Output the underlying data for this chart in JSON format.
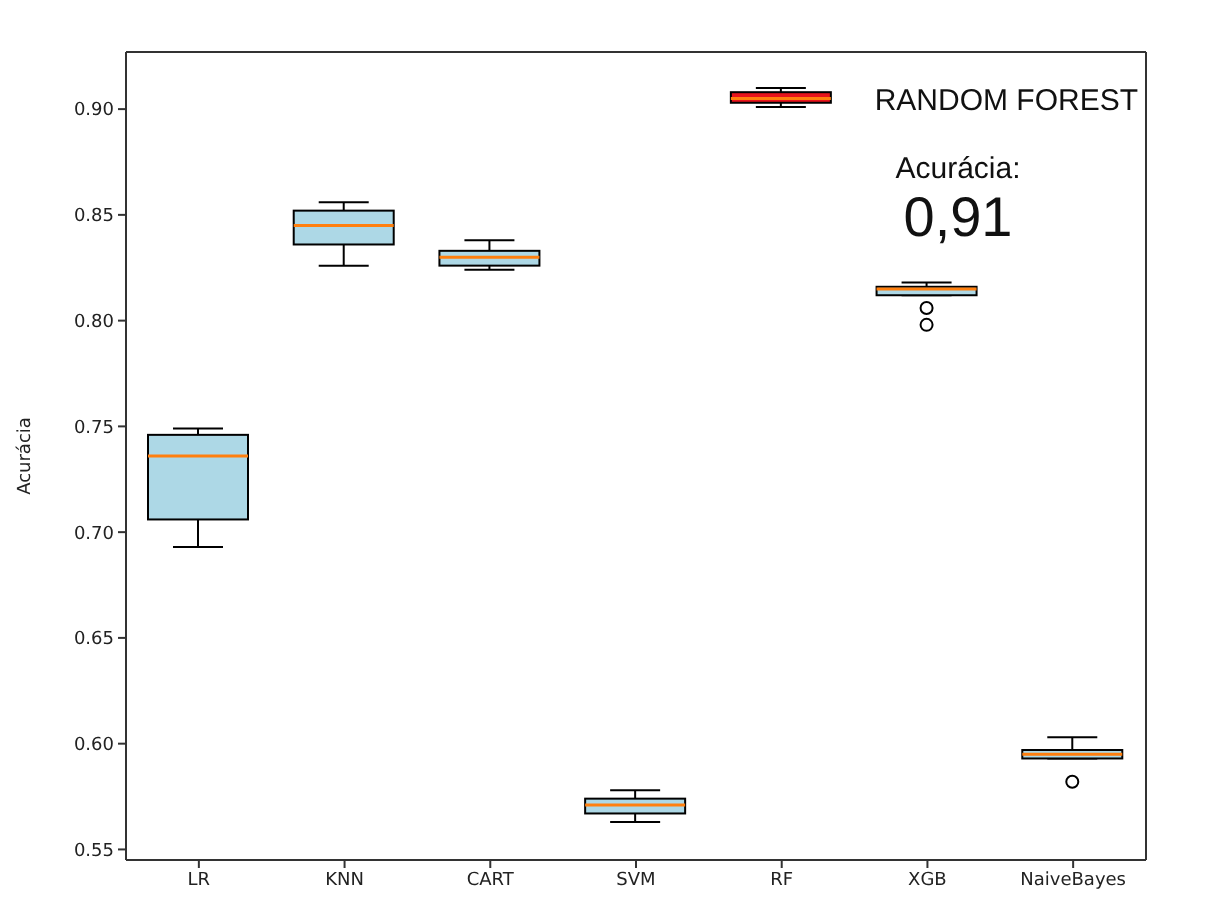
{
  "chart_data": {
    "type": "box",
    "ylabel": "Acurácia",
    "categories": [
      "LR",
      "KNN",
      "CART",
      "SVM",
      "RF",
      "XGB",
      "NaiveBayes"
    ],
    "boxes": [
      {
        "low": 0.693,
        "q1": 0.706,
        "median": 0.736,
        "q3": 0.746,
        "high": 0.749
      },
      {
        "low": 0.826,
        "q1": 0.836,
        "median": 0.845,
        "q3": 0.852,
        "high": 0.856
      },
      {
        "low": 0.824,
        "q1": 0.826,
        "median": 0.83,
        "q3": 0.833,
        "high": 0.838
      },
      {
        "low": 0.563,
        "q1": 0.567,
        "median": 0.571,
        "q3": 0.574,
        "high": 0.578
      },
      {
        "low": 0.901,
        "q1": 0.903,
        "median": 0.905,
        "q3": 0.908,
        "high": 0.91
      },
      {
        "low": 0.812,
        "q1": 0.812,
        "median": 0.815,
        "q3": 0.816,
        "high": 0.818,
        "outliers": [
          0.806,
          0.798
        ]
      },
      {
        "low": 0.593,
        "q1": 0.593,
        "median": 0.595,
        "q3": 0.597,
        "high": 0.603,
        "outliers": [
          0.582
        ]
      }
    ],
    "colors": [
      "#add8e6",
      "#add8e6",
      "#add8e6",
      "#add8e6",
      "#e8141c",
      "#add8e6",
      "#add8e6"
    ],
    "ylim": [
      0.545,
      0.927
    ],
    "yticks": [
      0.55,
      {
        "value": 0.6,
        "label": "0.60"
      },
      0.65,
      {
        "value": 0.7,
        "label": "0.70"
      },
      0.75,
      {
        "value": 0.8,
        "label": "0.80"
      },
      0.85,
      {
        "value": 0.9,
        "label": "0.90"
      }
    ],
    "grid": false,
    "legend": false,
    "annotations": [
      "RANDOM FOREST",
      "Acurácia:",
      "0,91"
    ]
  }
}
